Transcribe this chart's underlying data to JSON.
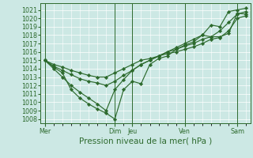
{
  "title": "",
  "xlabel": "Pression niveau de la mer( hPa )",
  "bg_color": "#cce8e4",
  "grid_color": "#ffffff",
  "line_color": "#2d6a2d",
  "ylim": [
    1007.5,
    1021.8
  ],
  "yticks": [
    1008,
    1009,
    1010,
    1011,
    1012,
    1013,
    1014,
    1015,
    1016,
    1017,
    1018,
    1019,
    1020,
    1021
  ],
  "x_day_labels": [
    "Mer",
    "Dim",
    "Jeu",
    "Ven",
    "Sam"
  ],
  "x_day_positions": [
    0,
    8,
    10,
    16,
    22
  ],
  "vline_positions": [
    0,
    8,
    10,
    16,
    22
  ],
  "xlim": [
    -0.5,
    23.5
  ],
  "lines": [
    [
      1015.0,
      1014.2,
      1013.5,
      1011.5,
      1010.5,
      1009.8,
      1009.2,
      1008.7,
      1008.0,
      1011.5,
      1012.5,
      1012.2,
      1014.5,
      1015.2,
      1015.5,
      1016.3,
      1016.8,
      1017.2,
      1018.0,
      1019.2,
      1019.0,
      1020.8,
      1021.0,
      1021.2
    ],
    [
      1015.0,
      1014.0,
      1013.0,
      1012.0,
      1011.2,
      1010.5,
      1009.8,
      1009.0,
      1011.5,
      1012.7,
      1013.8,
      1014.5,
      1015.0,
      1015.5,
      1016.0,
      1016.5,
      1017.0,
      1017.5,
      1018.0,
      1017.8,
      1018.5,
      1019.5,
      1020.5,
      1020.8
    ],
    [
      1015.0,
      1014.5,
      1014.2,
      1013.8,
      1013.5,
      1013.2,
      1013.0,
      1013.0,
      1013.5,
      1014.0,
      1014.5,
      1015.0,
      1015.2,
      1015.5,
      1015.8,
      1016.0,
      1016.3,
      1016.6,
      1017.0,
      1017.5,
      1017.7,
      1018.5,
      1020.0,
      1020.3
    ],
    [
      1015.0,
      1014.3,
      1013.8,
      1013.3,
      1012.8,
      1012.5,
      1012.3,
      1012.0,
      1012.5,
      1013.2,
      1013.8,
      1014.5,
      1015.0,
      1015.5,
      1016.0,
      1016.3,
      1016.7,
      1017.0,
      1017.5,
      1017.8,
      1017.8,
      1018.2,
      1020.6,
      1020.5
    ]
  ],
  "marker": "D",
  "markersize": 2.2,
  "linewidth": 0.85,
  "fontsize_ticks": 5.8,
  "fontsize_xlabel": 7.5
}
